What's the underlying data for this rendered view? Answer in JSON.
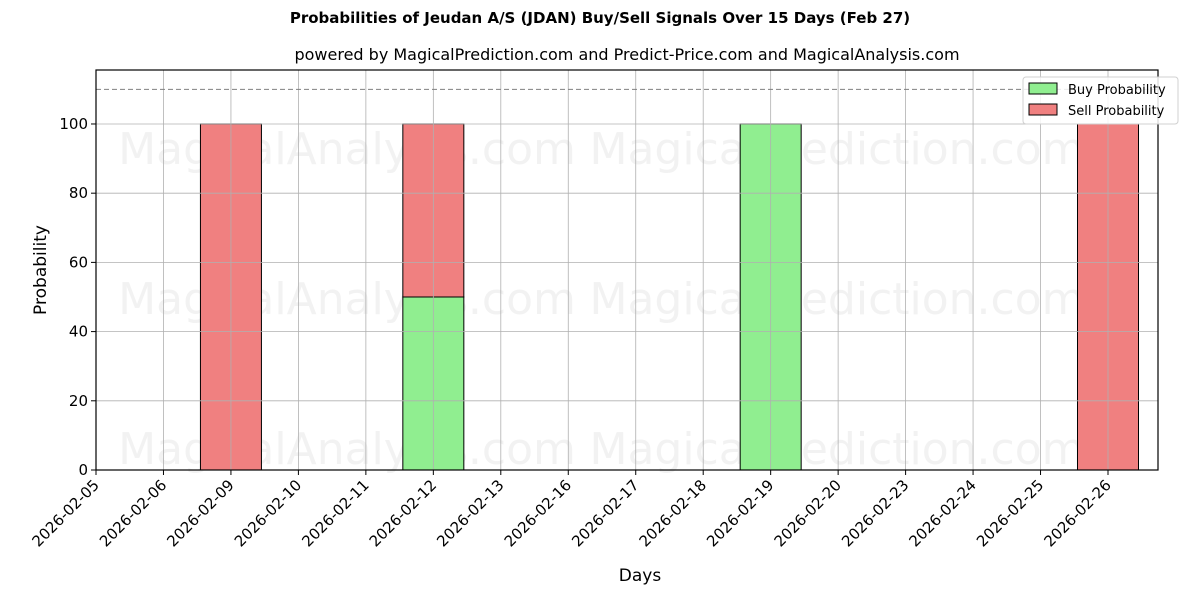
{
  "title": "Probabilities of Jeudan A/S (JDAN) Buy/Sell Signals Over 15 Days (Feb 27)",
  "subtitle": "powered by MagicalPrediction.com and Predict-Price.com and MagicalAnalysis.com",
  "watermarks": [
    "MagicalAnalysis.com",
    "MagicalPrediction.com"
  ],
  "colors": {
    "buy": "#90ee90",
    "sell": "#f08080",
    "grid": "#b0b0b0",
    "threshold": "#808080"
  },
  "chart_data": {
    "type": "bar",
    "stacked": true,
    "title": "Probabilities of Jeudan A/S (JDAN) Buy/Sell Signals Over 15 Days (Feb 27)",
    "subtitle": "powered by MagicalPrediction.com and Predict-Price.com and MagicalAnalysis.com",
    "xlabel": "Days",
    "ylabel": "Probability",
    "ylim": [
      0,
      115.6
    ],
    "yticks": [
      0,
      20,
      40,
      60,
      80,
      100
    ],
    "threshold_line": 110,
    "grid": true,
    "legend_position": "upper right",
    "categories": [
      "2026-02-05",
      "2026-02-06",
      "2026-02-09",
      "2026-02-10",
      "2026-02-11",
      "2026-02-12",
      "2026-02-13",
      "2026-02-16",
      "2026-02-17",
      "2026-02-18",
      "2026-02-19",
      "2026-02-20",
      "2026-02-23",
      "2026-02-24",
      "2026-02-25",
      "2026-02-26"
    ],
    "series": [
      {
        "name": "Buy Probability",
        "color": "#90ee90",
        "values": [
          0,
          0,
          0,
          0,
          0,
          50,
          0,
          0,
          0,
          0,
          100,
          0,
          0,
          0,
          0,
          0
        ]
      },
      {
        "name": "Sell Probability",
        "color": "#f08080",
        "values": [
          0,
          0,
          100,
          0,
          0,
          50,
          0,
          0,
          0,
          0,
          0,
          0,
          0,
          0,
          0,
          100
        ]
      }
    ]
  }
}
